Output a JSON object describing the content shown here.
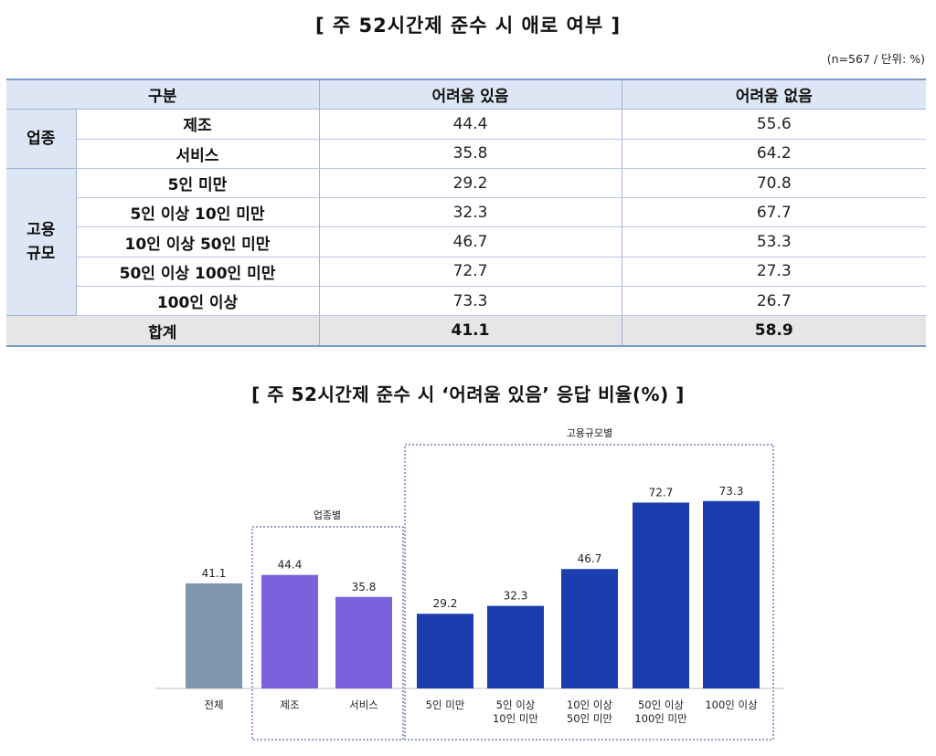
{
  "table_title": "[ 주 52시간제 준수 시 애로 여부 ]",
  "note": "(n=567 / 단위: %)",
  "table": {
    "headers": [
      "구분",
      "어려움 있음",
      "어려움 없음"
    ],
    "groups": [
      {
        "label": "업종",
        "rows": [
          {
            "category": "제조",
            "values": [
              "44.4",
              "55.6"
            ]
          },
          {
            "category": "서비스",
            "values": [
              "35.8",
              "64.2"
            ]
          }
        ]
      },
      {
        "label": "고용\n규모",
        "rows": [
          {
            "category": "5인 미만",
            "values": [
              "29.2",
              "70.8"
            ]
          },
          {
            "category": "5인 이상 10인 미만",
            "values": [
              "32.3",
              "67.7"
            ]
          },
          {
            "category": "10인 이상 50인 미만",
            "values": [
              "46.7",
              "53.3"
            ]
          },
          {
            "category": "50인 이상 100인 미만",
            "values": [
              "72.7",
              "27.3"
            ]
          },
          {
            "category": "100인 이상",
            "values": [
              "73.3",
              "26.7"
            ]
          }
        ]
      }
    ],
    "total": {
      "label": "합계",
      "values": [
        "41.1",
        "58.9"
      ]
    }
  },
  "chart_title": "[ 주 52시간제 준수 시 ‘어려움 있음’ 응답 비율(%) ]",
  "chart_data": {
    "type": "bar",
    "categories": [
      "전체",
      "제조",
      "서비스",
      "5인 미만",
      "5인 이상\n10인 미만",
      "10인 이상\n50인 미만",
      "50인 이상\n100인 미만",
      "100인 이상"
    ],
    "values": [
      41.1,
      44.4,
      35.8,
      29.2,
      32.3,
      46.7,
      72.7,
      73.3
    ],
    "value_labels": [
      "41.1",
      "44.4",
      "35.8",
      "29.2",
      "32.3",
      "46.7",
      "72.7",
      "73.3"
    ],
    "groups": [
      {
        "label": "업종별",
        "categories": [
          "제조",
          "서비스"
        ]
      },
      {
        "label": "고용규모별",
        "categories": [
          "5인 미만",
          "5인 이상\n10인 미만",
          "10인 이상\n50인 미만",
          "50인 이상\n100인 미만",
          "100인 이상"
        ]
      }
    ],
    "colors": [
      "#8096b0",
      "#7b61de",
      "#7b61de",
      "#1a3eb0",
      "#1a3eb0",
      "#1a3eb0",
      "#1a3eb0",
      "#1a3eb0"
    ],
    "ylim": [
      0,
      100
    ],
    "grid": false,
    "legend": "none"
  }
}
